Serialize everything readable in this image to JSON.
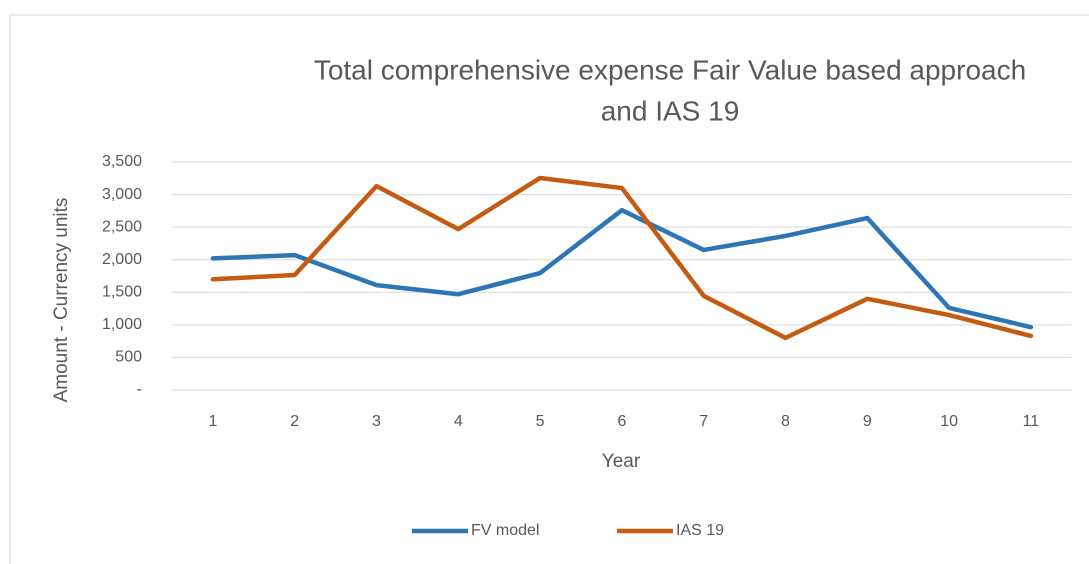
{
  "chart_data": {
    "type": "line",
    "title": [
      "Total comprehensive expense Fair Value based approach",
      "and IAS 19"
    ],
    "x_label": "Year",
    "y_label": "Amount - Currency units",
    "categories": [
      1,
      2,
      3,
      4,
      5,
      6,
      7,
      8,
      9,
      10,
      11
    ],
    "series": [
      {
        "name": "FV model",
        "color": "#2e75b6",
        "values": [
          2020,
          2070,
          1610,
          1470,
          1795,
          2760,
          2150,
          2365,
          2640,
          1260,
          965
        ]
      },
      {
        "name": "IAS 19",
        "color": "#c55a11",
        "values": [
          1700,
          1765,
          3130,
          2470,
          3255,
          3100,
          1445,
          800,
          1400,
          1150,
          830
        ]
      }
    ],
    "ylim": [
      0,
      3500
    ],
    "yticks": [
      {
        "value": 0,
        "label": "-"
      },
      500,
      {
        "value": 1000,
        "label": "1,000"
      },
      {
        "value": 1500,
        "label": "1,500"
      },
      {
        "value": 2000,
        "label": "2,000"
      },
      {
        "value": 2500,
        "label": "2,500"
      },
      {
        "value": 3000,
        "label": "3,000"
      },
      {
        "value": 3500,
        "label": "3,500"
      }
    ],
    "grid": true,
    "legend": "bottom"
  }
}
